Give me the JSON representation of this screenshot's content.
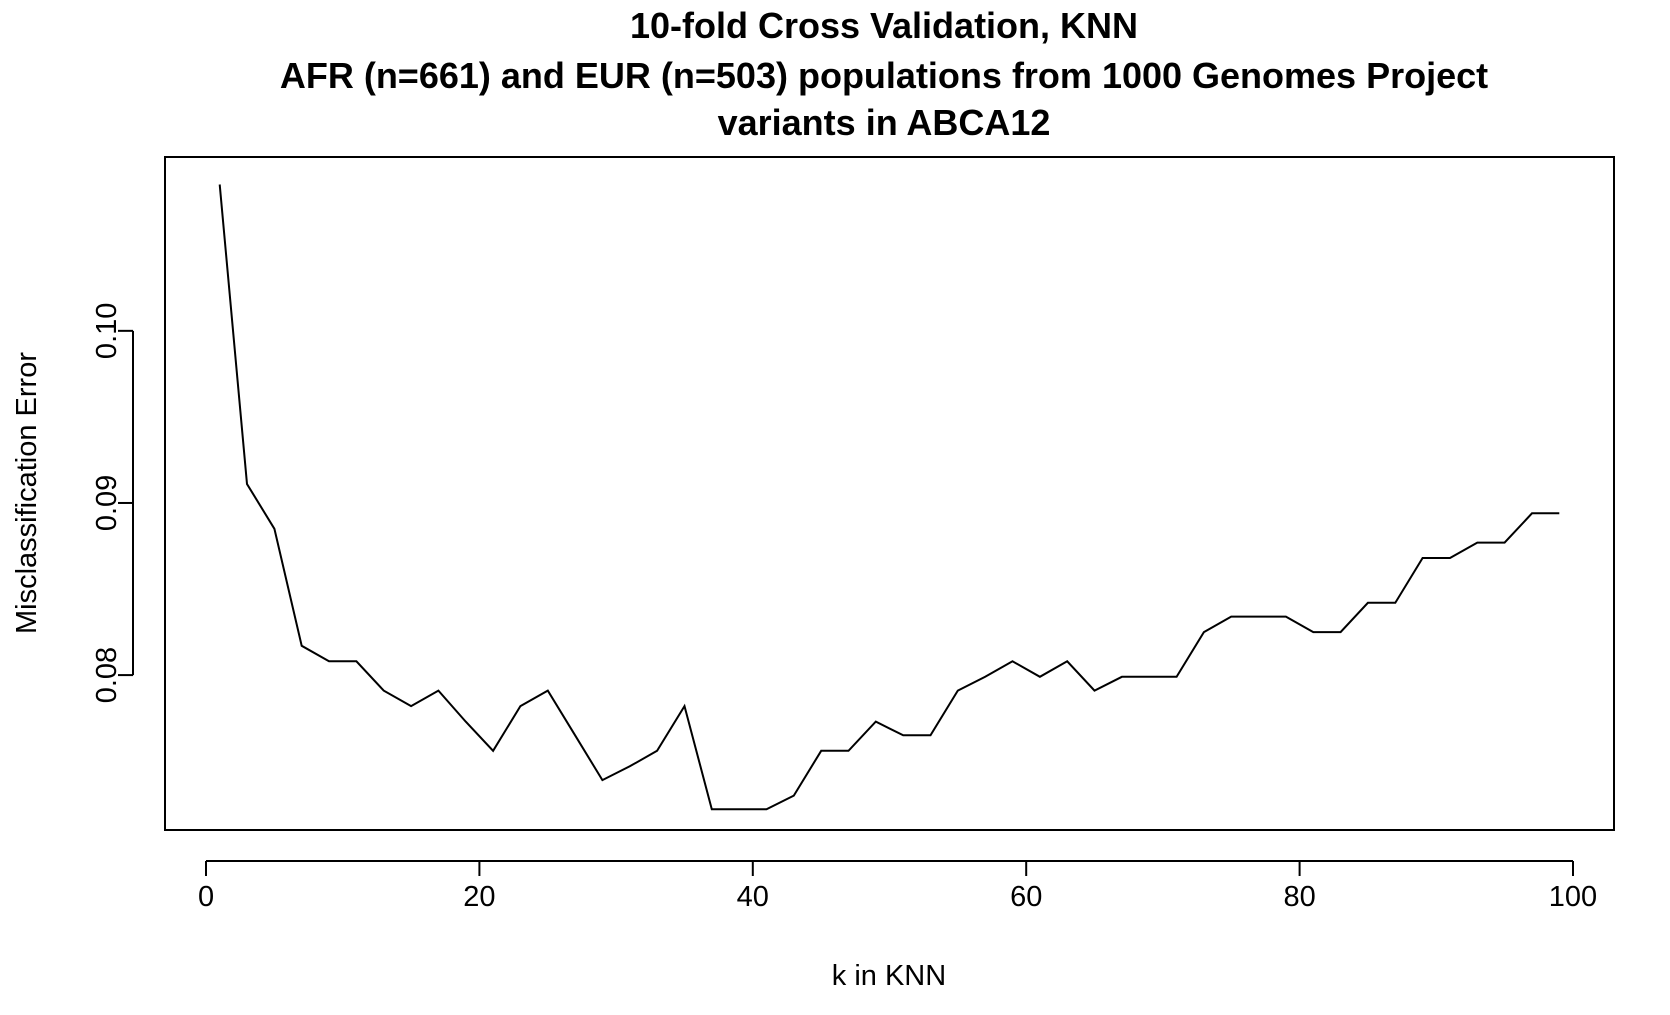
{
  "chart_data": {
    "type": "line",
    "title": [
      "10-fold Cross Validation, KNN",
      "AFR (n=661) and EUR (n=503) populations from 1000 Genomes Project",
      "variants in ABCA12"
    ],
    "xlabel": "k in KNN",
    "ylabel": "Misclassification Error",
    "xlim": [
      -3,
      103
    ],
    "ylim": [
      0.071,
      0.1101
    ],
    "xticks": [
      0,
      20,
      40,
      60,
      80,
      100
    ],
    "xtick_labels": [
      "0",
      "20",
      "40",
      "60",
      "80",
      "100"
    ],
    "yticks": [
      0.08,
      0.09,
      0.1
    ],
    "ytick_labels": [
      "0.08",
      "0.09",
      "0.10"
    ],
    "grid": false,
    "legend": "none",
    "series": [
      {
        "color": "#000000",
        "x": [
          1,
          3,
          5,
          7,
          9,
          11,
          13,
          15,
          17,
          19,
          21,
          23,
          25,
          27,
          29,
          31,
          33,
          35,
          37,
          39,
          41,
          43,
          45,
          47,
          49,
          51,
          53,
          55,
          57,
          59,
          61,
          63,
          65,
          67,
          69,
          71,
          73,
          75,
          77,
          79,
          81,
          83,
          85,
          87,
          89,
          91,
          93,
          95,
          97,
          99
        ],
        "y": [
          0.1085,
          0.0911,
          0.0885,
          0.0817,
          0.0808,
          0.0808,
          0.0791,
          0.0782,
          0.0791,
          0.0773,
          0.0756,
          0.0782,
          0.0791,
          0.0765,
          0.0739,
          0.0747,
          0.0756,
          0.0782,
          0.0722,
          0.0722,
          0.0722,
          0.073,
          0.0756,
          0.0756,
          0.0773,
          0.0765,
          0.0765,
          0.0791,
          0.0799,
          0.0808,
          0.0799,
          0.0808,
          0.0791,
          0.0799,
          0.0799,
          0.0799,
          0.0825,
          0.0834,
          0.0834,
          0.0834,
          0.0825,
          0.0825,
          0.0842,
          0.0842,
          0.0868,
          0.0868,
          0.0877,
          0.0877,
          0.0894,
          0.0894
        ]
      }
    ]
  }
}
